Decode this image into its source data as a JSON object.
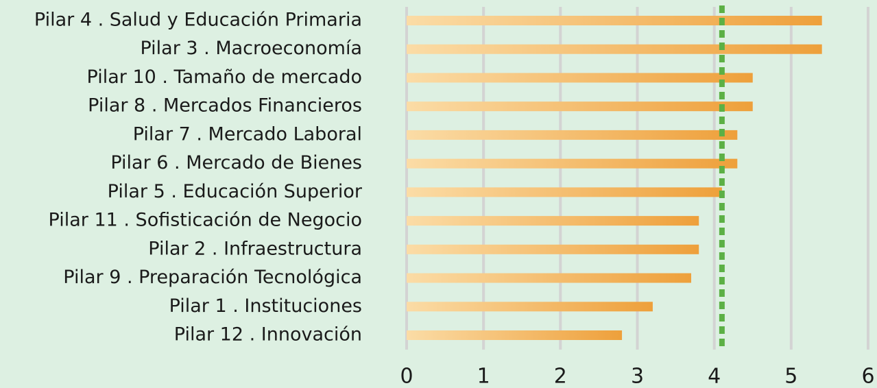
{
  "chart_data": {
    "type": "barh",
    "categories": [
      "Pilar 4 . Salud y Educación Primaria",
      "Pilar 3 . Macroeconomía",
      "Pilar 10 . Tamaño de mercado",
      "Pilar 8 . Mercados Financieros",
      "Pilar 7 . Mercado Laboral",
      "Pilar 6 . Mercado de Bienes",
      "Pilar 5 . Educación Superior",
      "Pilar 11 . Sofisticación de Negocio",
      "Pilar 2 . Infraestructura",
      "Pilar 9 . Preparación Tecnológica",
      "Pilar 1 . Instituciones",
      "Pilar 12 . Innovación"
    ],
    "values": [
      5.4,
      5.4,
      4.5,
      4.5,
      4.3,
      4.3,
      4.1,
      3.8,
      3.8,
      3.7,
      3.2,
      2.8
    ],
    "gradient_colors": [
      "#fbdca6",
      "#eea03b"
    ],
    "reference_value": 4.1,
    "reference_color": "#5cb045",
    "xlim": [
      0,
      6
    ],
    "xticks": [
      0,
      1,
      2,
      3,
      4,
      5,
      6
    ],
    "grid": true,
    "grid_color": "#d3d3d3"
  }
}
